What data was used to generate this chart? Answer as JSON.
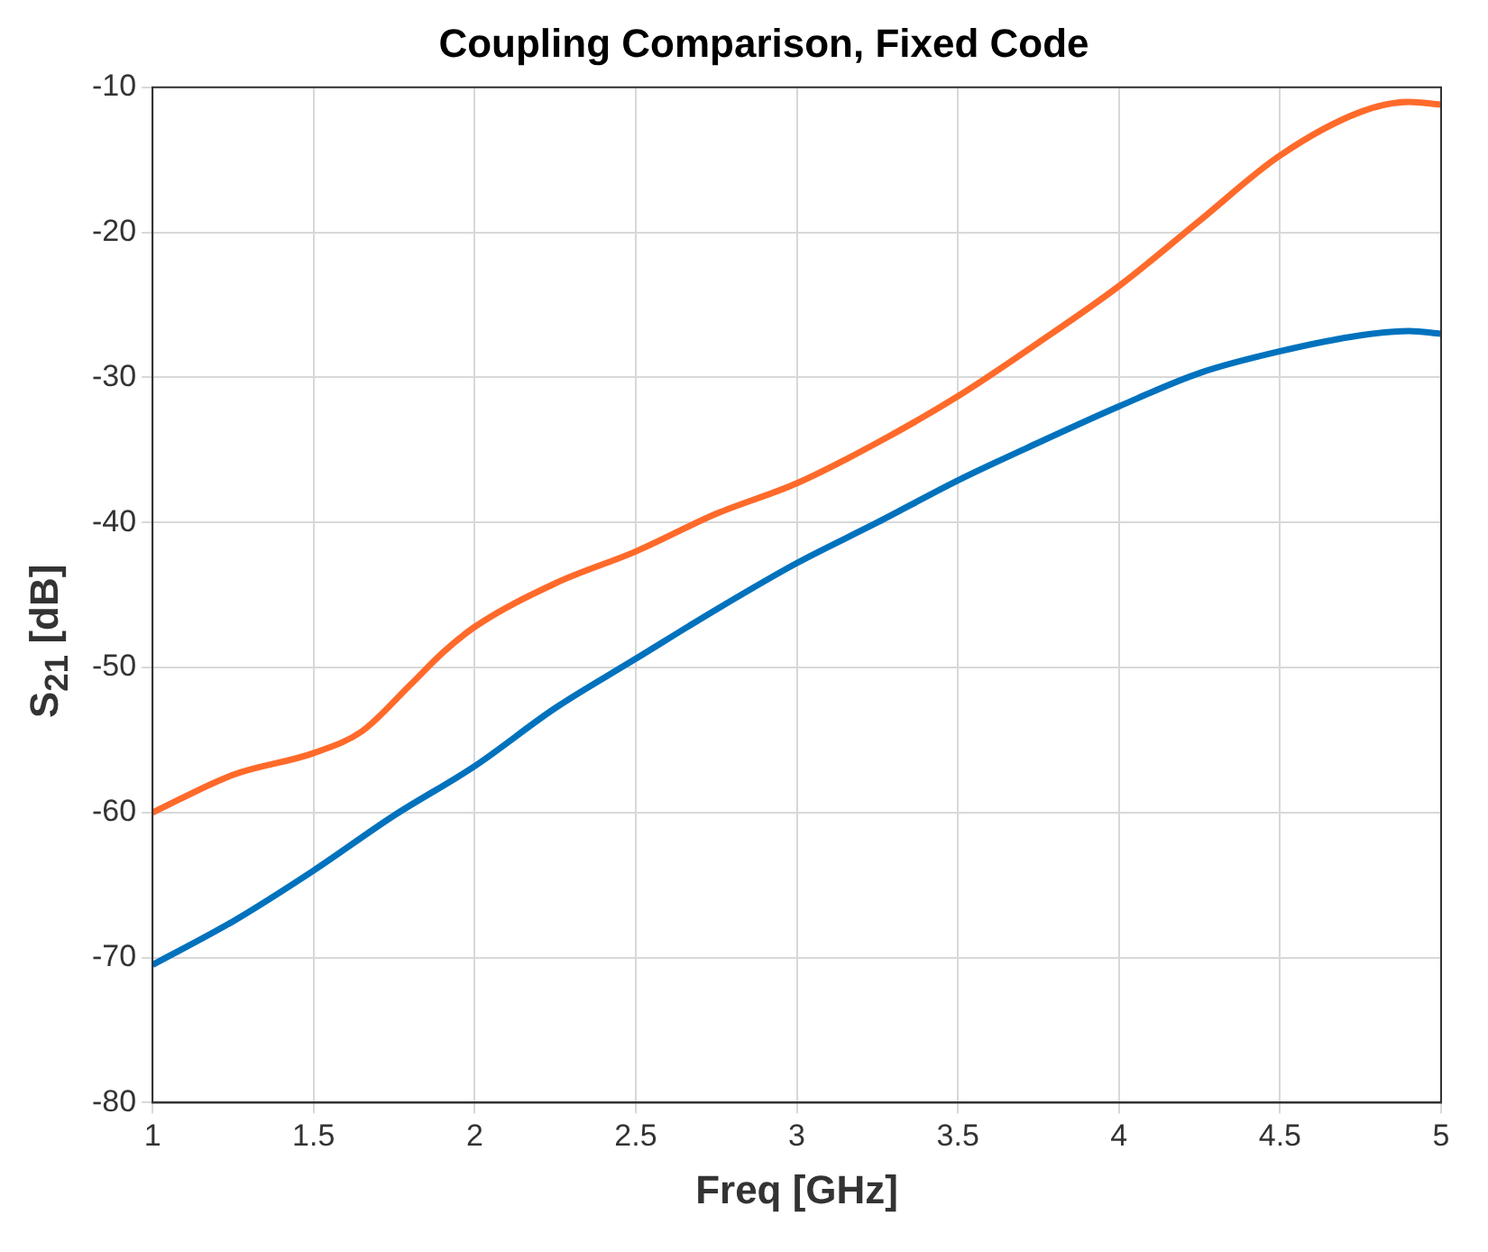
{
  "chart_data": {
    "type": "line",
    "title": "Coupling Comparison, Fixed Code",
    "xlabel": "Freq [GHz]",
    "ylabel": "S$_{21}$ [dB]",
    "xlim": [
      1,
      5
    ],
    "xticks": [
      1,
      1.5,
      2,
      2.5,
      3,
      3.5,
      4,
      4.5,
      5
    ],
    "ylim": [
      -80,
      -10
    ],
    "yticks": [
      -80,
      -70,
      -60,
      -50,
      -40,
      -30,
      -20,
      -10
    ],
    "grid": true,
    "legend": false,
    "marker": "none",
    "line_style": "solid",
    "series": [
      {
        "color": "#0072bd",
        "x": [
          1,
          1.25,
          1.5,
          1.75,
          2,
          2.25,
          2.5,
          2.75,
          3,
          3.25,
          3.5,
          3.75,
          4,
          4.25,
          4.5,
          4.75,
          4.9,
          5
        ],
        "values": [
          -70.5,
          -67.5,
          -64,
          -60.2,
          -56.8,
          -52.8,
          -49.4,
          -46,
          -42.8,
          -40,
          -37.1,
          -34.5,
          -32,
          -29.7,
          -28.2,
          -27.1,
          -26.8,
          -27
        ]
      },
      {
        "color": "#ff6a2a",
        "x": [
          1,
          1.25,
          1.5,
          1.65,
          1.8,
          1.9,
          2,
          2.25,
          2.5,
          2.75,
          3,
          3.25,
          3.5,
          3.75,
          4,
          4.25,
          4.5,
          4.75,
          4.9,
          5
        ],
        "values": [
          -60,
          -57.4,
          -55.9,
          -54.4,
          -51.2,
          -49,
          -47.2,
          -44.2,
          -42,
          -39.4,
          -37.3,
          -34.5,
          -31.3,
          -27.6,
          -23.7,
          -19.2,
          -14.7,
          -11.7,
          -11,
          -11.2
        ]
      }
    ]
  }
}
